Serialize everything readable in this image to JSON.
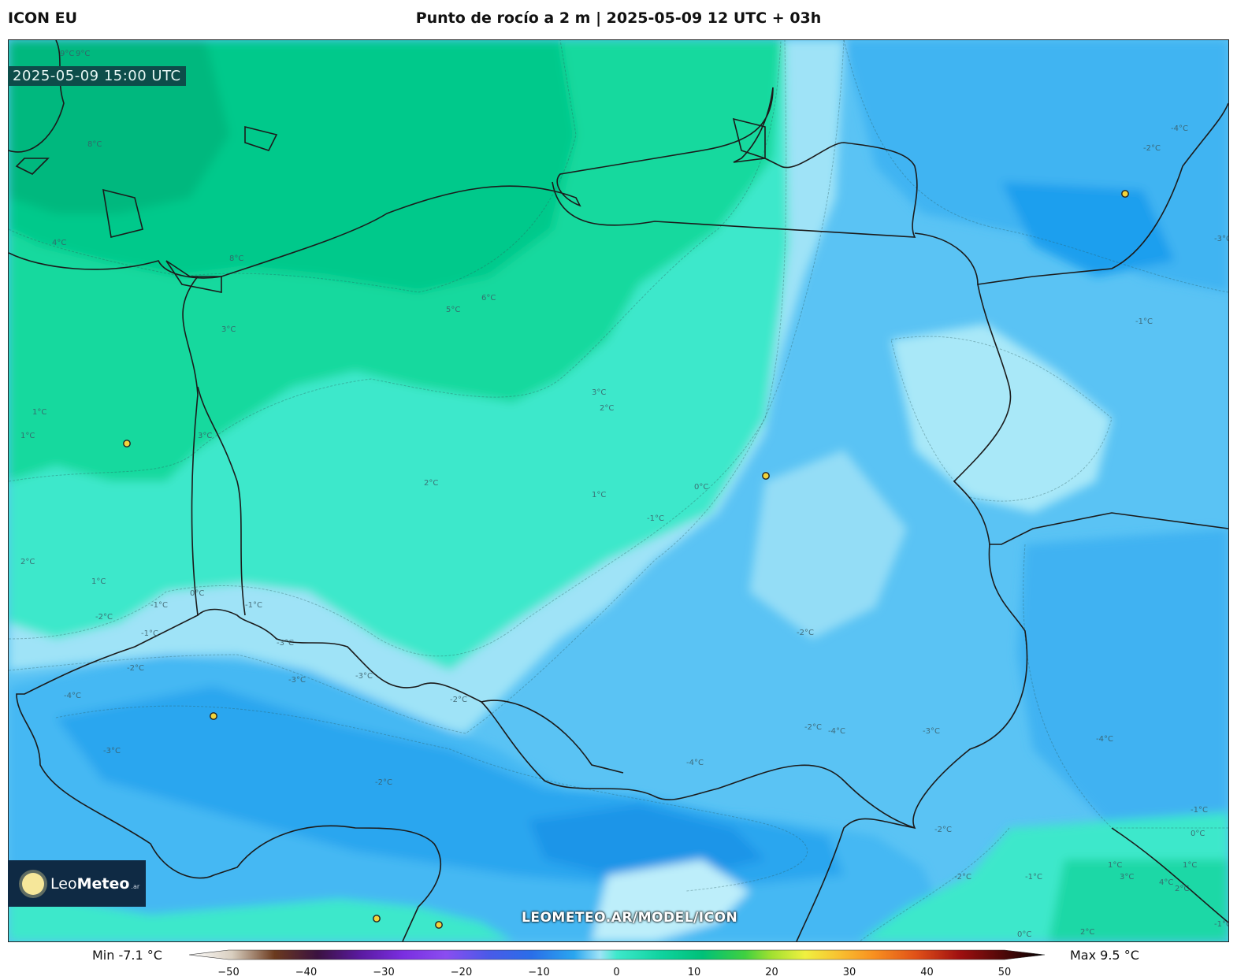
{
  "header": {
    "model": "ICON EU",
    "title": "Punto de rocío a 2 m | 2025-05-09 12 UTC + 03h"
  },
  "map": {
    "timestamp": "2025-05-09 15:00 UTC",
    "watermark": "LEOMETEO.AR/MODEL/ICON",
    "contour_labels": [
      "9°C",
      "8°C",
      "9°C",
      "4°C",
      "3°C",
      "8°C",
      "5°C",
      "6°C",
      "3°C",
      "2°C",
      "1°C",
      "1°C",
      "3°C",
      "2°C",
      "1°C",
      "0°C",
      "-1°C",
      "1°C",
      "-1°C",
      "0°C",
      "-1°C",
      "2°C",
      "-2°C",
      "-1°C",
      "-3°C",
      "-2°C",
      "-3°C",
      "-4°C",
      "-3°C",
      "-2°C",
      "-3°C",
      "-2°C",
      "-3°C",
      "-2°C",
      "-4°C",
      "-4°C",
      "-2°C",
      "-1°C",
      "0°C",
      "1°C",
      "2°C",
      "3°C",
      "4°C",
      "-1°C",
      "-3°C",
      "-2°C",
      "-4°C",
      "-4°C",
      "-2°C",
      "-2°C",
      "1°C",
      "-1°C",
      "0°C",
      "2°C",
      "-1°C"
    ],
    "cities_count": 7
  },
  "logo": {
    "brand_light": "Leo",
    "brand_bold": "Meteo",
    "tld": ".ar"
  },
  "colorbar": {
    "min_label": "Min -7.1 °C",
    "max_label": "Max 9.5 °C",
    "ticks": [
      "−50",
      "−40",
      "−30",
      "−20",
      "−10",
      "0",
      "10",
      "20",
      "30",
      "40",
      "50"
    ],
    "range": [
      -50,
      50
    ]
  },
  "colors": {
    "warm_green": "#05c98b",
    "mint": "#3ee8cb",
    "pale_blue": "#9fe3f7",
    "mid_blue": "#5ac3f4",
    "deep_blue": "#2aa6ef"
  }
}
